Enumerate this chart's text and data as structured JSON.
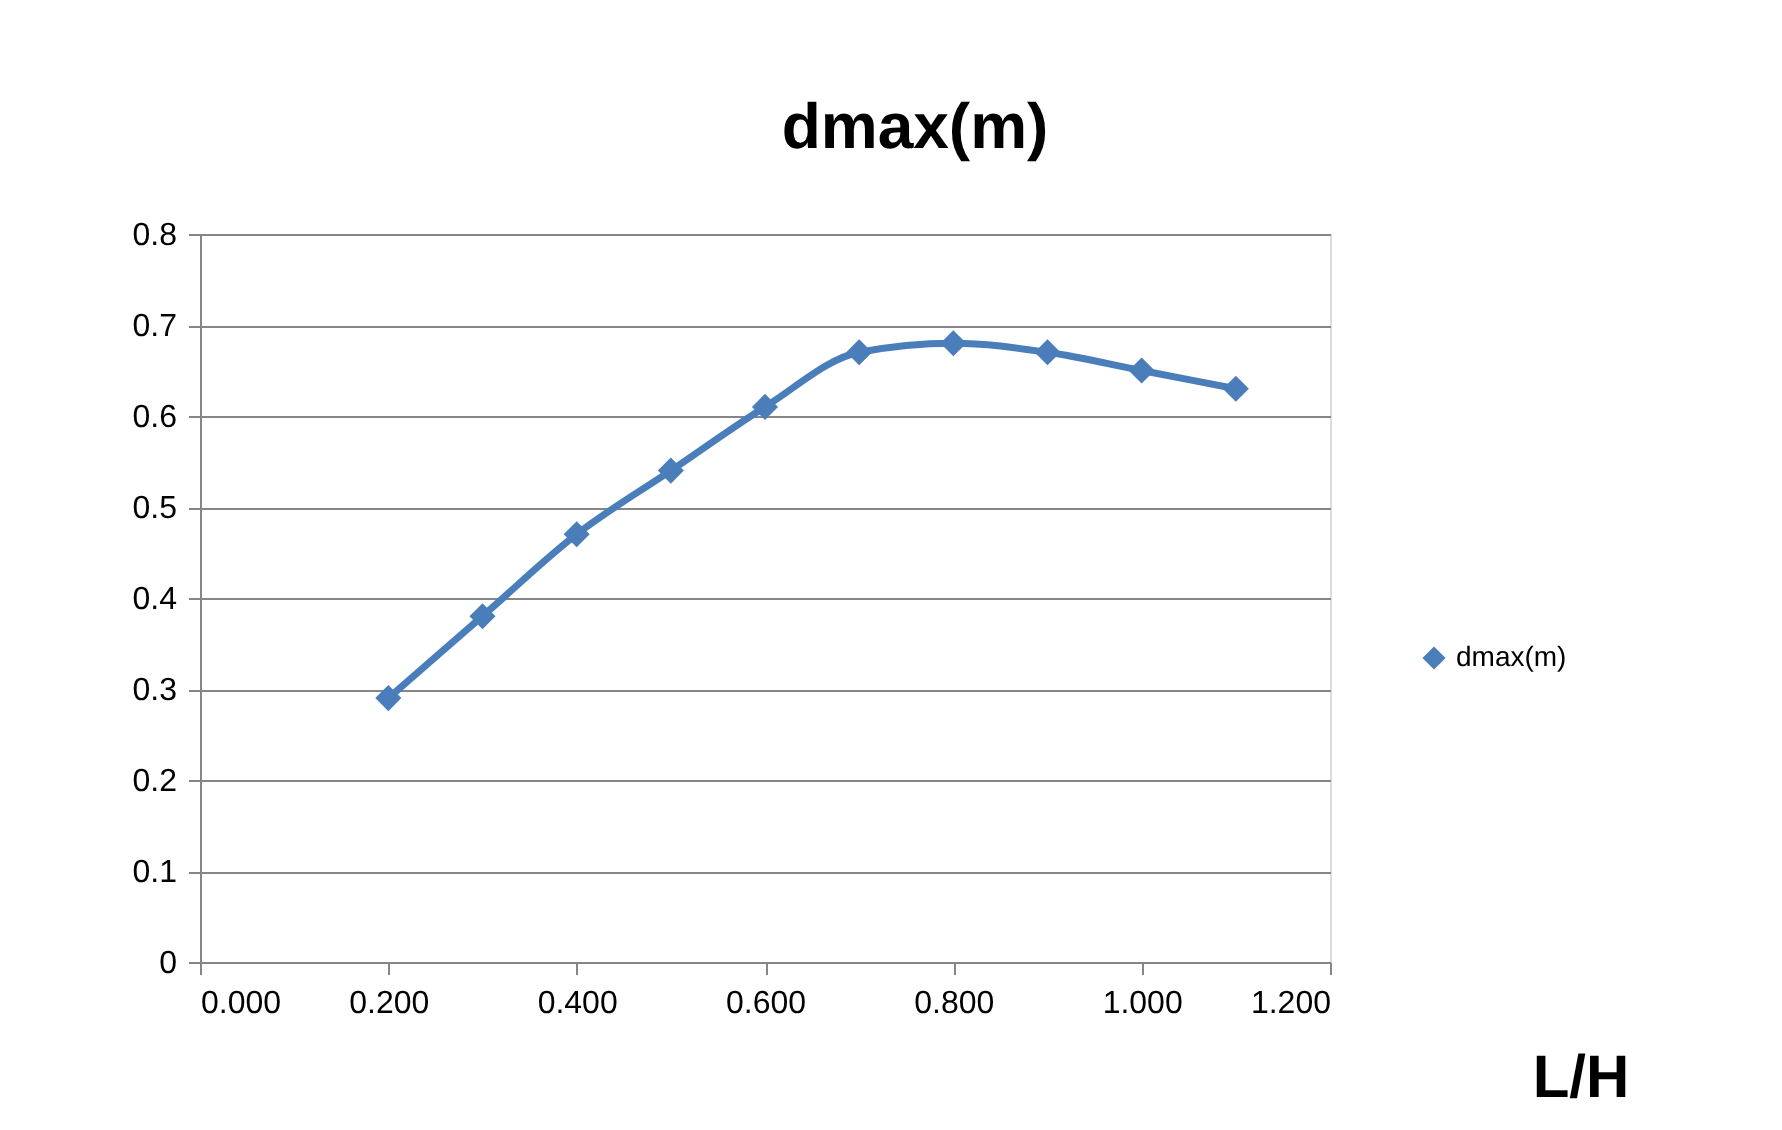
{
  "chart_data": {
    "type": "line",
    "title": "dmax(m)",
    "xlabel": "L/H",
    "x": [
      0.2,
      0.3,
      0.4,
      0.5,
      0.6,
      0.7,
      0.8,
      0.9,
      1,
      1.1
    ],
    "series": [
      {
        "name": "dmax(m)",
        "color": "#4a7ebb",
        "values": [
          0.29,
          0.38,
          0.47,
          0.54,
          0.61,
          0.67,
          0.68,
          0.67,
          0.65,
          0.63
        ]
      }
    ],
    "xlim": [
      0,
      1.2
    ],
    "xticks": [
      {
        "value": 0,
        "label": "0.000"
      },
      {
        "value": 0.2,
        "label": "0.200"
      },
      {
        "value": 0.4,
        "label": "0.400"
      },
      {
        "value": 0.6,
        "label": "0.600"
      },
      {
        "value": 0.8,
        "label": "0.800"
      },
      {
        "value": 1,
        "label": "1.000"
      },
      {
        "value": 1.2,
        "label": "1.200"
      }
    ],
    "ylim": [
      0,
      0.8
    ],
    "yticks": [
      0,
      0.1,
      0.2,
      0.3,
      0.4,
      0.5,
      0.6,
      0.7,
      0.8
    ],
    "grid": "y",
    "legend": "right",
    "marker": "diamond",
    "line_style": "solid"
  }
}
